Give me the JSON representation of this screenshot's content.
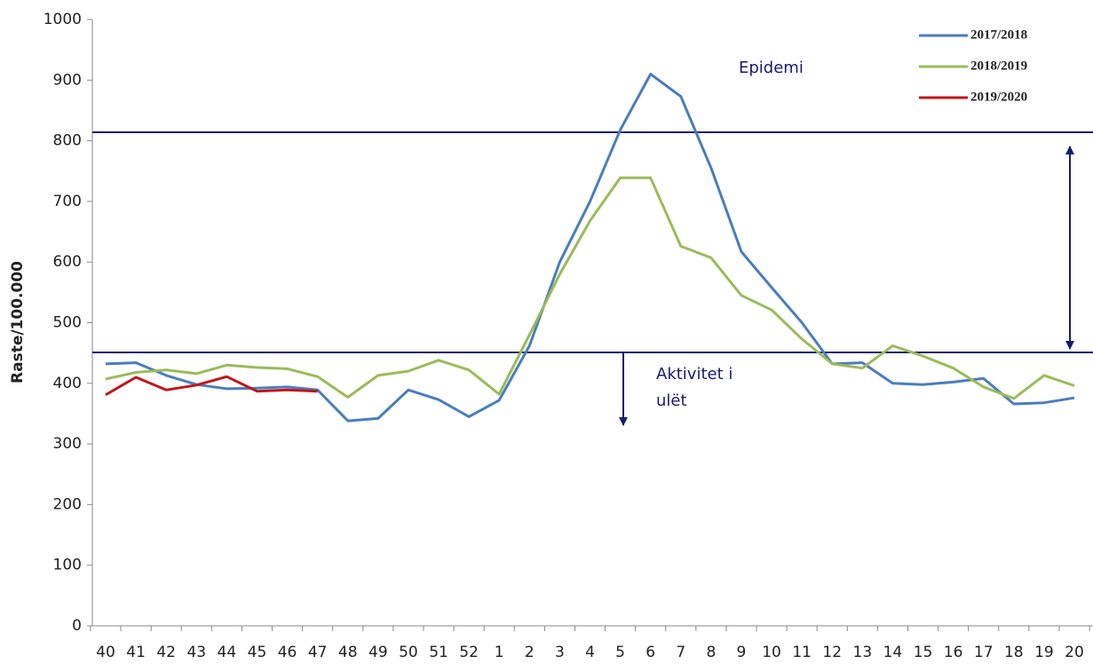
{
  "chart_data": {
    "type": "line",
    "y_label": "Raste/100.000",
    "categories": [
      "40",
      "41",
      "42",
      "43",
      "44",
      "45",
      "46",
      "47",
      "48",
      "49",
      "50",
      "51",
      "52",
      "1",
      "2",
      "3",
      "4",
      "5",
      "6",
      "7",
      "8",
      "9",
      "10",
      "11",
      "12",
      "13",
      "14",
      "15",
      "16",
      "17",
      "18",
      "19",
      "20"
    ],
    "series": [
      {
        "name": "2017/2018",
        "color": "#4a7ebb",
        "values": [
          432,
          434,
          413,
          398,
          391,
          392,
          394,
          389,
          338,
          342,
          389,
          373,
          345,
          372,
          462,
          600,
          700,
          818,
          910,
          873,
          755,
          617,
          558,
          500,
          432,
          434,
          400,
          398,
          402,
          408,
          366,
          368,
          376
        ]
      },
      {
        "name": "2018/2019",
        "color": "#9bbb59",
        "values": [
          407,
          418,
          422,
          416,
          430,
          426,
          424,
          411,
          377,
          413,
          420,
          438,
          422,
          382,
          480,
          580,
          668,
          739,
          739,
          626,
          607,
          545,
          521,
          473,
          432,
          425,
          462,
          445,
          425,
          394,
          375,
          413,
          396
        ]
      },
      {
        "name": "2019/2020",
        "color": "#c0161a",
        "values": [
          381,
          410,
          389,
          397,
          411,
          387,
          389,
          387,
          null,
          null,
          null,
          null,
          null,
          null,
          null,
          null,
          null,
          null,
          null,
          null,
          null,
          null,
          null,
          null,
          null,
          null,
          null,
          null,
          null,
          null,
          null,
          null,
          null
        ]
      }
    ],
    "reference_lines": [
      {
        "value": 814,
        "label": "Epidemi"
      },
      {
        "value": 451,
        "label": "Aktivitet i ulët"
      }
    ],
    "reference_color": "#1a1a6e",
    "ylim": [
      0,
      1000
    ],
    "yticks": [
      0,
      100,
      200,
      300,
      400,
      500,
      600,
      700,
      800,
      900,
      1000
    ],
    "grid": false,
    "legend": "upper right"
  }
}
